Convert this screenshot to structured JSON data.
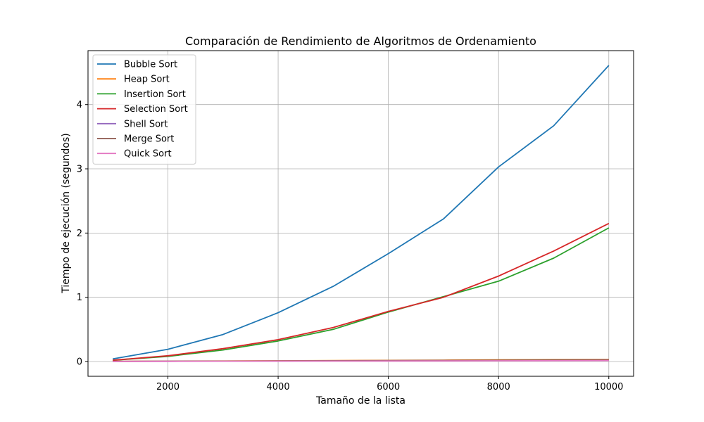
{
  "chart_data": {
    "type": "line",
    "title": "Comparación de Rendimiento de Algoritmos de Ordenamiento",
    "xlabel": "Tamaño de la lista",
    "ylabel": "Tiempo de ejecución (segundos)",
    "x": [
      1000,
      2000,
      3000,
      4000,
      5000,
      6000,
      7000,
      8000,
      9000,
      10000
    ],
    "xlim": [
      550,
      10450
    ],
    "ylim": [
      -0.23,
      4.84
    ],
    "xticks": [
      2000,
      4000,
      6000,
      8000,
      10000
    ],
    "yticks": [
      0,
      1,
      2,
      3,
      4
    ],
    "grid": true,
    "legend_position": "top-left",
    "series": [
      {
        "name": "Bubble Sort",
        "color": "#1f77b4",
        "values": [
          0.04,
          0.19,
          0.42,
          0.76,
          1.17,
          1.68,
          2.22,
          3.03,
          3.67,
          4.61
        ]
      },
      {
        "name": "Heap Sort",
        "color": "#ff7f0e",
        "values": [
          0.002,
          0.005,
          0.008,
          0.011,
          0.014,
          0.018,
          0.021,
          0.025,
          0.028,
          0.032
        ]
      },
      {
        "name": "Insertion Sort",
        "color": "#2ca02c",
        "values": [
          0.02,
          0.08,
          0.18,
          0.32,
          0.5,
          0.77,
          1.01,
          1.25,
          1.61,
          2.08
        ]
      },
      {
        "name": "Selection Sort",
        "color": "#d62728",
        "values": [
          0.02,
          0.09,
          0.2,
          0.34,
          0.53,
          0.78,
          1.0,
          1.33,
          1.72,
          2.15
        ]
      },
      {
        "name": "Shell Sort",
        "color": "#9467bd",
        "values": [
          0.001,
          0.003,
          0.005,
          0.008,
          0.01,
          0.012,
          0.014,
          0.017,
          0.019,
          0.021
        ]
      },
      {
        "name": "Merge Sort",
        "color": "#8c564b",
        "values": [
          0.002,
          0.004,
          0.007,
          0.009,
          0.012,
          0.015,
          0.018,
          0.021,
          0.024,
          0.027
        ]
      },
      {
        "name": "Quick Sort",
        "color": "#e377c2",
        "values": [
          0.001,
          0.002,
          0.004,
          0.005,
          0.006,
          0.008,
          0.009,
          0.011,
          0.012,
          0.014
        ]
      }
    ]
  }
}
